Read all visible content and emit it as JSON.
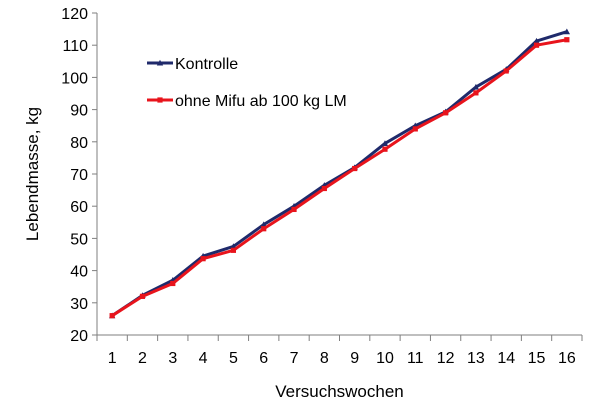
{
  "chart_data": {
    "type": "line",
    "title": "",
    "xlabel": "Versuchswochen",
    "ylabel": "Lebendmasse, kg",
    "x": [
      1,
      2,
      3,
      4,
      5,
      6,
      7,
      8,
      9,
      10,
      11,
      12,
      13,
      14,
      15,
      16
    ],
    "ylim": [
      20,
      120
    ],
    "yticks": [
      20,
      30,
      40,
      50,
      60,
      70,
      80,
      90,
      100,
      110,
      120
    ],
    "grid": false,
    "legend_position": "top-left",
    "series": [
      {
        "name": "Kontrolle",
        "color": "#1f2a6b",
        "marker": "triangle",
        "values": [
          26,
          32.3,
          37,
          44.5,
          47.5,
          54.3,
          60,
          66.5,
          72,
          79.5,
          85,
          89.3,
          97,
          102.5,
          111.3,
          114.2
        ]
      },
      {
        "name": "ohne Mifu ab 100 kg LM",
        "color": "#e8141c",
        "marker": "square",
        "values": [
          26,
          32,
          36,
          43.7,
          46.3,
          53,
          59,
          65.5,
          71.7,
          77.7,
          84,
          89,
          95.2,
          102,
          110,
          111.7
        ]
      }
    ]
  }
}
